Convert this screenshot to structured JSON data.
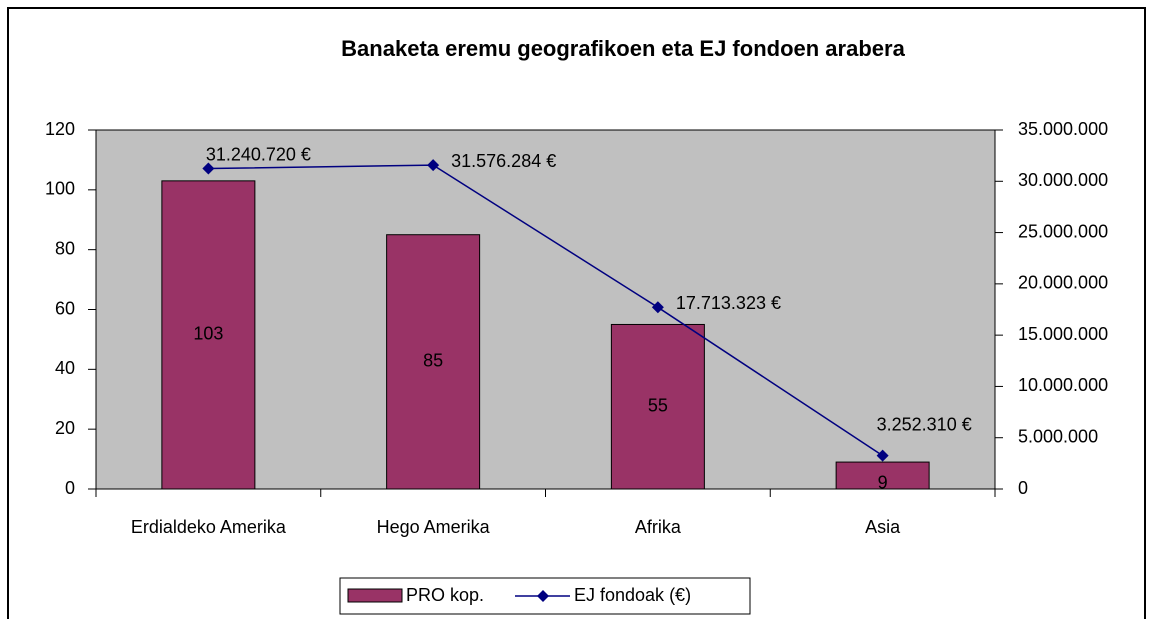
{
  "chart_data": {
    "type": "combo",
    "title": "Banaketa eremu geografikoen eta EJ fondoen arabera",
    "categories": [
      "Erdialdeko Amerika",
      "Hego Amerika",
      "Afrika",
      "Asia"
    ],
    "series": [
      {
        "name": "PRO kop.",
        "type": "bar",
        "color": "#993366",
        "values": [
          103,
          85,
          55,
          9
        ]
      },
      {
        "name": "EJ fondoak (€)",
        "type": "line",
        "axis": "y2",
        "color": "#000080",
        "values": [
          31240720,
          31576284,
          17713323,
          3252310
        ],
        "value_labels": [
          "31.240.720 €",
          "31.576.284 €",
          "17.713.323 €",
          "3.252.310 €"
        ]
      }
    ],
    "ylim": [
      0,
      120
    ],
    "yticks": [
      0,
      20,
      40,
      60,
      80,
      100,
      120
    ],
    "y2lim": [
      0,
      35000000
    ],
    "y2ticks": [
      0,
      {
        "value": 5000000,
        "label": "5.000.000"
      },
      {
        "value": 10000000,
        "label": "10.000.000"
      },
      {
        "value": 15000000,
        "label": "15.000.000"
      },
      {
        "value": 20000000,
        "label": "20.000.000"
      },
      {
        "value": 25000000,
        "label": "25.000.000"
      },
      {
        "value": 30000000,
        "label": "30.000.000"
      },
      {
        "value": 35000000,
        "label": "35.000.000"
      }
    ],
    "legend": "bottom",
    "plot_background": "#c0c0c0"
  }
}
